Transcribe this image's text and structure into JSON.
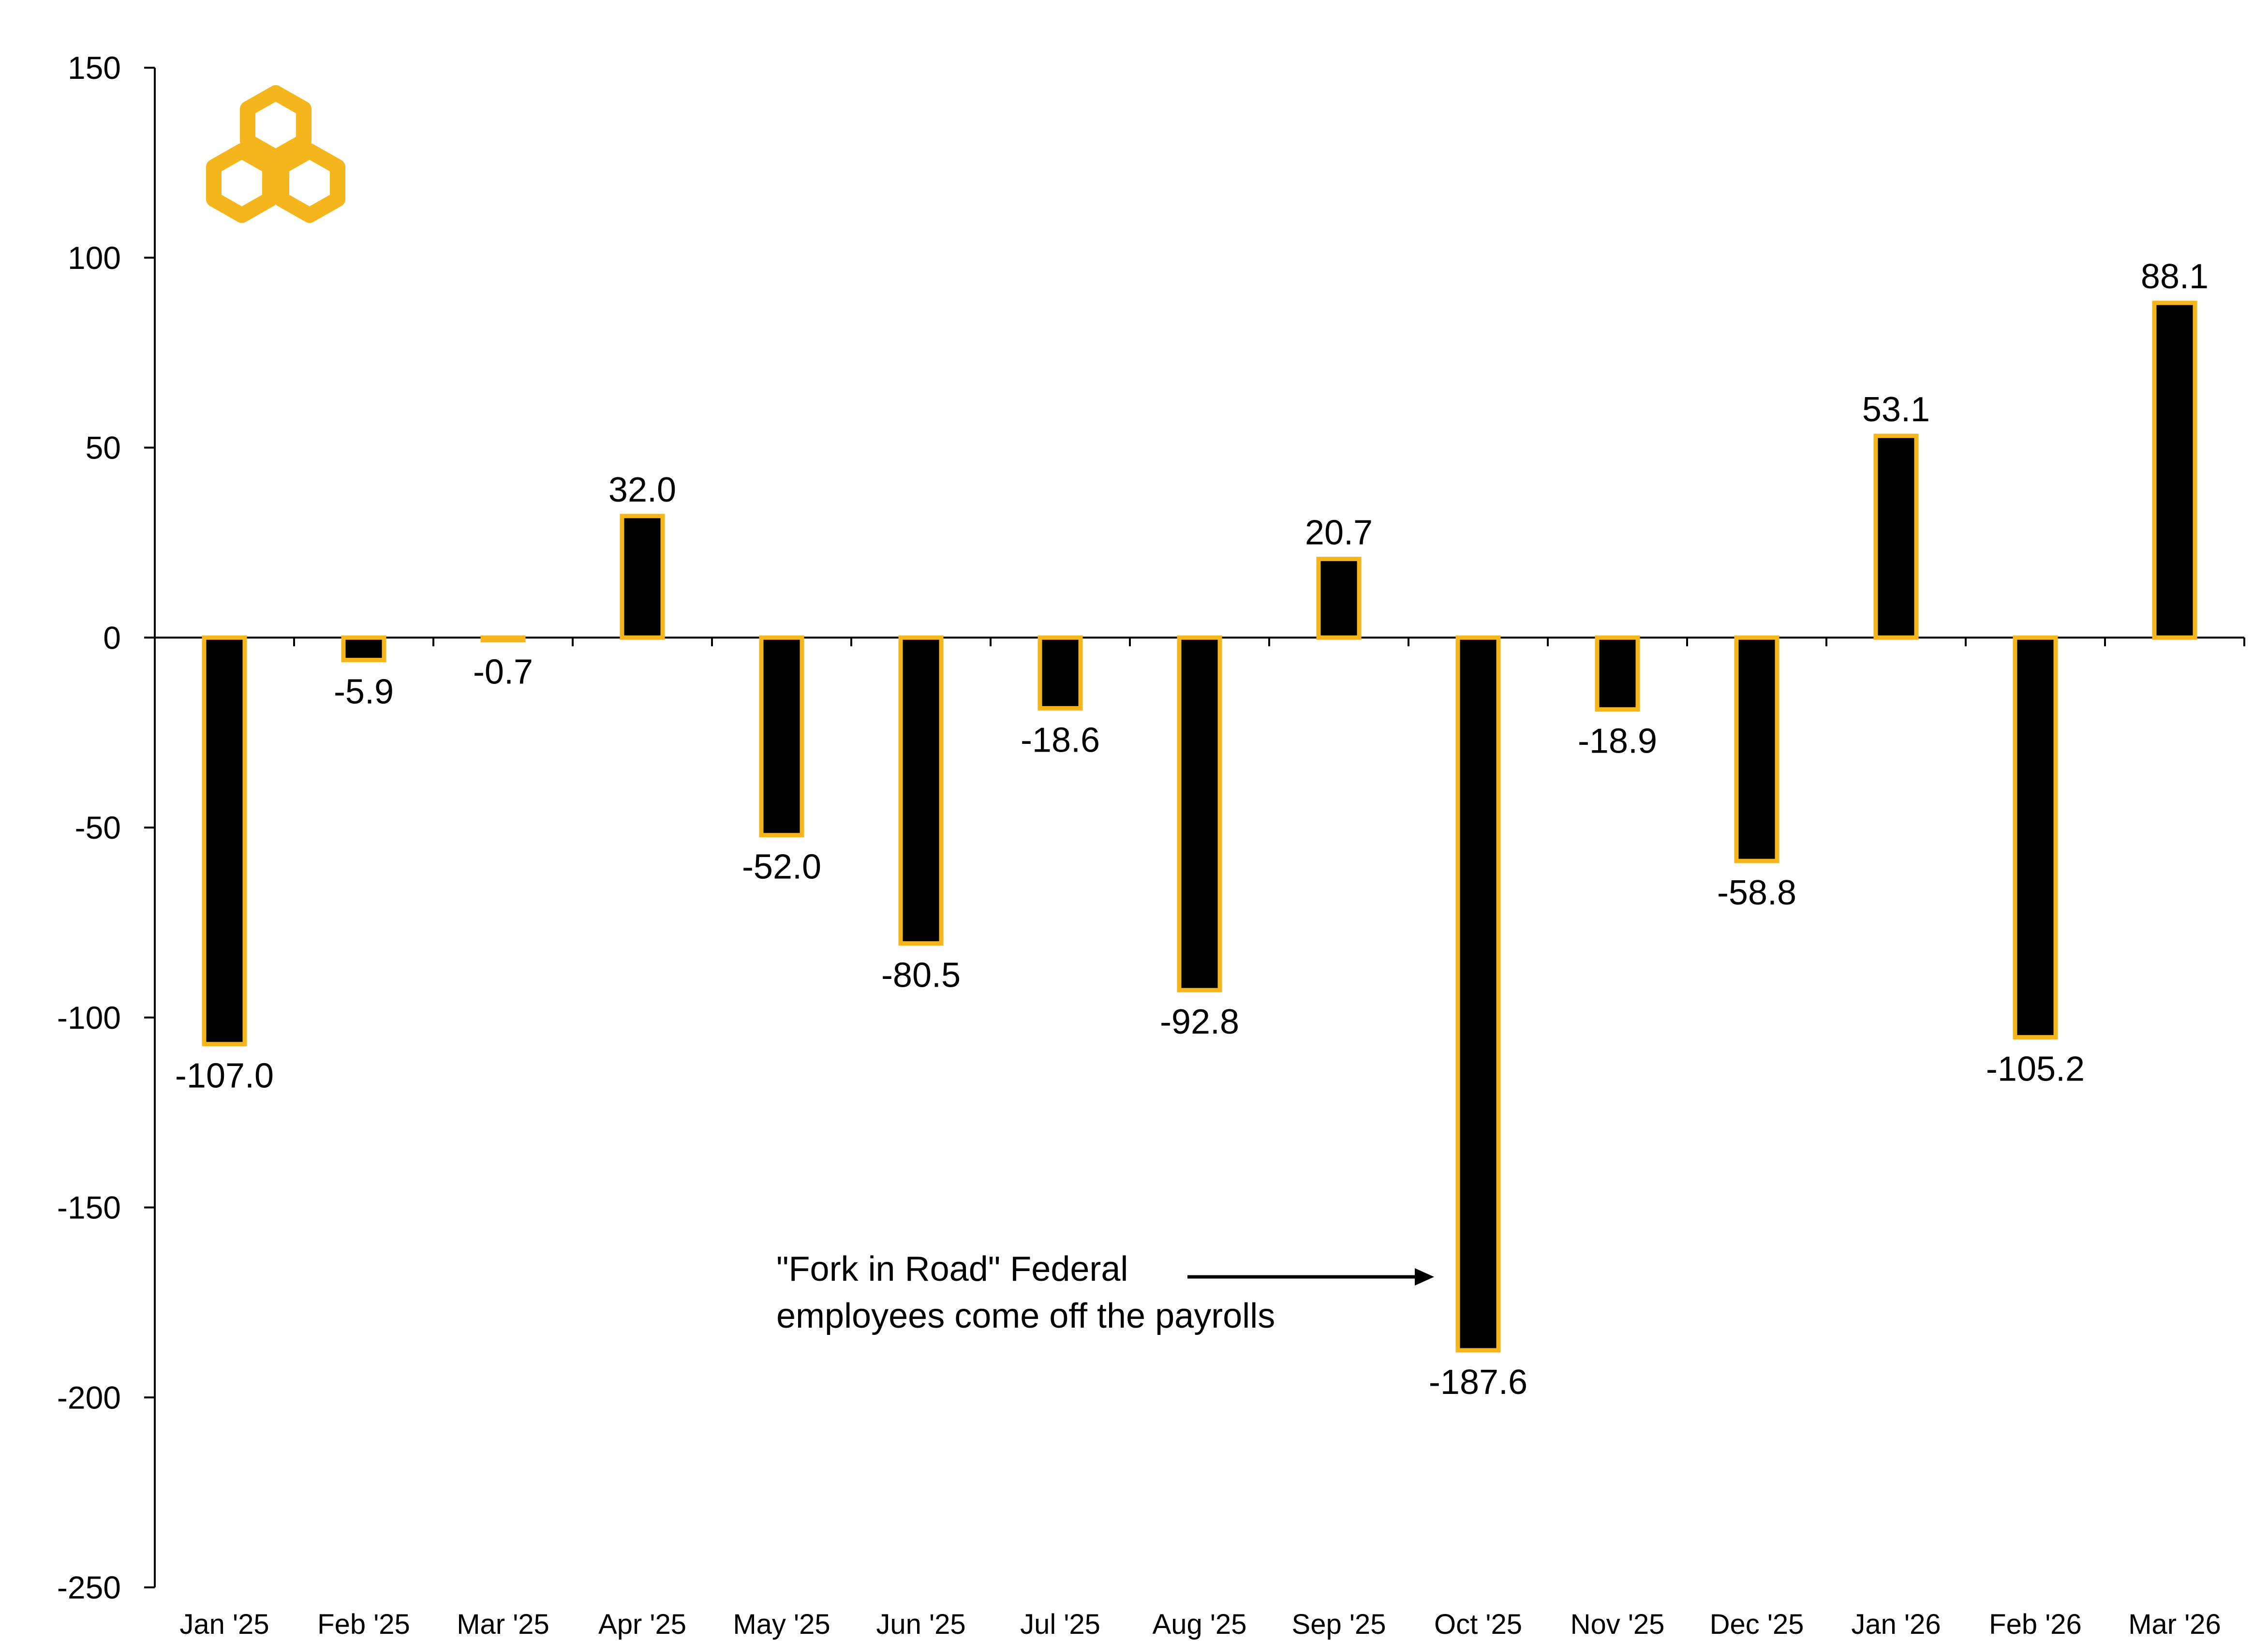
{
  "chart_data": {
    "type": "bar",
    "title": "",
    "xlabel": "",
    "ylabel": "",
    "ylim": [
      -250,
      150
    ],
    "yticks": [
      150,
      100,
      50,
      0,
      -50,
      -100,
      -150,
      -200,
      -250
    ],
    "categories": [
      "Jan '25",
      "Feb '25",
      "Mar '25",
      "Apr '25",
      "May '25",
      "Jun '25",
      "Jul '25",
      "Aug '25",
      "Sep '25",
      "Oct '25",
      "Nov '25",
      "Dec '25",
      "Jan '26",
      "Feb '26",
      "Mar '26"
    ],
    "values": [
      -107.0,
      -5.9,
      -0.7,
      32.0,
      -52.0,
      -80.5,
      -18.6,
      -92.8,
      20.7,
      -187.6,
      -18.9,
      -58.8,
      53.1,
      -105.2,
      88.1
    ],
    "data_labels": [
      "-107.0",
      "-5.9",
      "-0.7",
      "32.0",
      "-52.0",
      "-80.5",
      "-18.6",
      "-92.8",
      "20.7",
      "-187.6",
      "-18.9",
      "-58.8",
      "53.1",
      "-105.2",
      "88.1"
    ],
    "grid": false,
    "legend": "none",
    "bar_fill": "#000000",
    "bar_outline": "#F5B51D",
    "annotation": {
      "lines": [
        "\"Fork in Road\" Federal",
        "employees come off the payrolls"
      ],
      "y_value": -168,
      "points_to": "Oct '25"
    }
  },
  "logo": {
    "name": "gold-interlocked-hexagons-logo",
    "color": "#F5B51D"
  }
}
